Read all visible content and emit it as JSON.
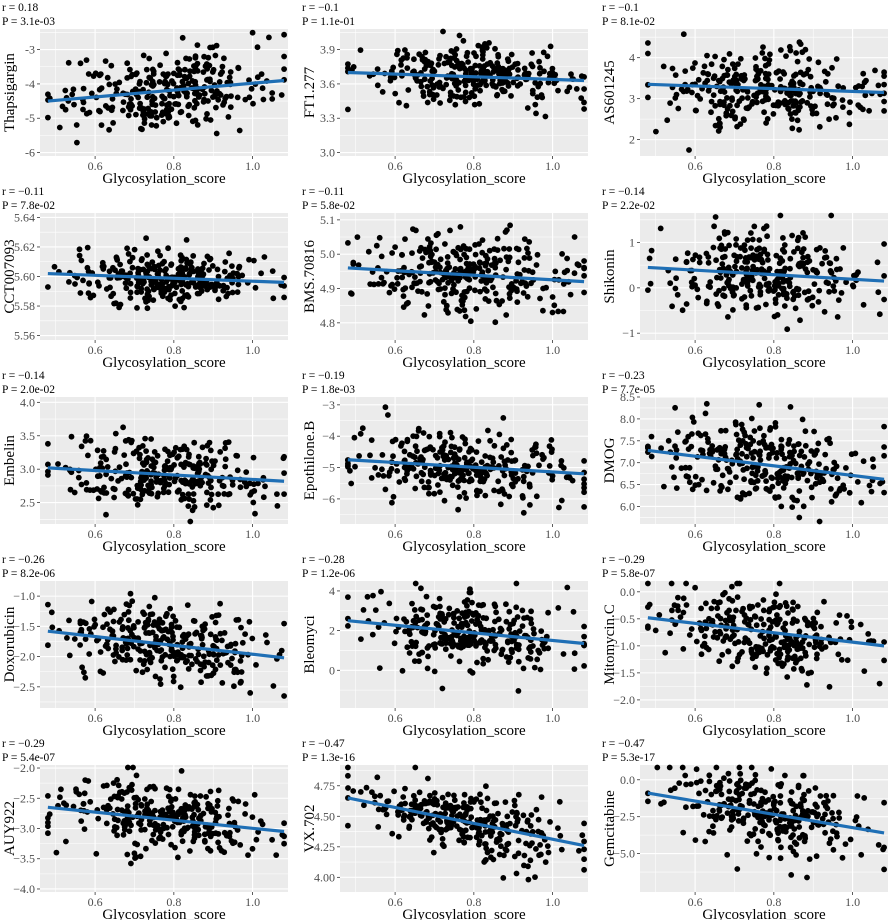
{
  "colors": {
    "panel_background": "#ebebeb",
    "grid": "#ffffff",
    "points": "#000000",
    "fit_line": "#1f6fb5"
  },
  "chart_data": [
    {
      "type": "scatter",
      "xlabel": "Glycosylation_score",
      "ylabel": "Thapsigargin",
      "r_text": "r = 0.18",
      "p_text": "P = 3.1e-03",
      "xlim": [
        0.46,
        1.09
      ],
      "ylim": [
        -6.1,
        -2.4
      ],
      "xticks": [
        "0.6",
        "0.8",
        "1.0"
      ],
      "yticks": [
        "-3",
        "-4",
        "-5",
        "-6"
      ],
      "trend": {
        "x": [
          0.48,
          1.08
        ],
        "y": [
          -4.5,
          -3.9
        ]
      },
      "n": 300,
      "y_center": -4.2,
      "y_sd": 0.55,
      "cloud_note": "~300 points"
    },
    {
      "type": "scatter",
      "xlabel": "Glycosylation_score",
      "ylabel": "FT1.277",
      "r_text": "r = −0.1",
      "p_text": "P = 1.1e-01",
      "xlim": [
        0.46,
        1.09
      ],
      "ylim": [
        2.97,
        4.08
      ],
      "xticks": [
        "0.6",
        "0.8",
        "1.0"
      ],
      "yticks": [
        "3.9",
        "3.6",
        "3.3",
        "3.0"
      ],
      "trend": {
        "x": [
          0.48,
          1.08
        ],
        "y": [
          3.7,
          3.63
        ]
      },
      "n": 300,
      "y_center": 3.67,
      "y_sd": 0.12
    },
    {
      "type": "scatter",
      "xlabel": "Glycosylation_score",
      "ylabel": "AS601245",
      "r_text": "r = −0.1",
      "p_text": "P = 8.1e-02",
      "xlim": [
        0.46,
        1.09
      ],
      "ylim": [
        1.6,
        4.7
      ],
      "xticks": [
        "0.6",
        "0.8",
        "1.0"
      ],
      "yticks": [
        "4",
        "3",
        "2"
      ],
      "trend": {
        "x": [
          0.48,
          1.08
        ],
        "y": [
          3.35,
          3.15
        ]
      },
      "n": 300,
      "y_center": 3.25,
      "y_sd": 0.45
    },
    {
      "type": "scatter",
      "xlabel": "Glycosylation_score",
      "ylabel": "CCT007093",
      "r_text": "r = −0.11",
      "p_text": "P = 7.8e-02",
      "xlim": [
        0.46,
        1.09
      ],
      "ylim": [
        5.557,
        5.643
      ],
      "xticks": [
        "0.6",
        "0.8",
        "1.0"
      ],
      "yticks": [
        "5.64",
        "5.62",
        "5.60",
        "5.58",
        "5.56"
      ],
      "trend": {
        "x": [
          0.48,
          1.08
        ],
        "y": [
          5.602,
          5.596
        ]
      },
      "n": 300,
      "y_center": 5.599,
      "y_sd": 0.009
    },
    {
      "type": "scatter",
      "xlabel": "Glycosylation_score",
      "ylabel": "BMS.70816",
      "r_text": "r = −0.11",
      "p_text": "P = 5.8e-02",
      "xlim": [
        0.46,
        1.09
      ],
      "ylim": [
        4.75,
        5.12
      ],
      "xticks": [
        "0.6",
        "0.8",
        "1.0"
      ],
      "yticks": [
        "5.1",
        "5.0",
        "4.9",
        "4.8"
      ],
      "trend": {
        "x": [
          0.48,
          1.08
        ],
        "y": [
          4.96,
          4.92
        ]
      },
      "n": 300,
      "y_center": 4.94,
      "y_sd": 0.06
    },
    {
      "type": "scatter",
      "xlabel": "Glycosylation_score",
      "ylabel": "Shikonin",
      "r_text": "r = −0.14",
      "p_text": "P = 2.2e-02",
      "xlim": [
        0.46,
        1.09
      ],
      "ylim": [
        -1.15,
        1.65
      ],
      "xticks": [
        "0.6",
        "0.8",
        "1.0"
      ],
      "yticks": [
        "1",
        "0",
        "−1"
      ],
      "trend": {
        "x": [
          0.48,
          1.08
        ],
        "y": [
          0.45,
          0.15
        ]
      },
      "n": 300,
      "y_center": 0.3,
      "y_sd": 0.45
    },
    {
      "type": "scatter",
      "xlabel": "Glycosylation_score",
      "ylabel": "Embelin",
      "r_text": "r = −0.14",
      "p_text": "P = 2.0e-02",
      "xlim": [
        0.46,
        1.09
      ],
      "ylim": [
        2.18,
        4.08
      ],
      "xticks": [
        "0.6",
        "0.8",
        "1.0"
      ],
      "yticks": [
        "4.0",
        "3.5",
        "3.0",
        "2.5"
      ],
      "trend": {
        "x": [
          0.48,
          1.08
        ],
        "y": [
          3.02,
          2.82
        ]
      },
      "n": 300,
      "y_center": 2.92,
      "y_sd": 0.28
    },
    {
      "type": "scatter",
      "xlabel": "Glycosylation_score",
      "ylabel": "Epothilone.B",
      "r_text": "r = −0.19",
      "p_text": "P = 1.8e-03",
      "xlim": [
        0.46,
        1.09
      ],
      "ylim": [
        -6.8,
        -2.75
      ],
      "xticks": [
        "0.6",
        "0.8",
        "1.0"
      ],
      "yticks": [
        "−3",
        "−4",
        "−5",
        "−6"
      ],
      "trend": {
        "x": [
          0.48,
          1.08
        ],
        "y": [
          -4.75,
          -5.2
        ]
      },
      "n": 300,
      "y_center": -4.95,
      "y_sd": 0.55
    },
    {
      "type": "scatter",
      "xlabel": "Glycosylation_score",
      "ylabel": "DMOG",
      "r_text": "r = −0.23",
      "p_text": "P = 7.7e-05",
      "xlim": [
        0.46,
        1.09
      ],
      "ylim": [
        5.6,
        8.5
      ],
      "xticks": [
        "0.6",
        "0.8",
        "1.0"
      ],
      "yticks": [
        "8.5",
        "8.0",
        "7.5",
        "7.0",
        "6.5",
        "6.0"
      ],
      "trend": {
        "x": [
          0.48,
          1.08
        ],
        "y": [
          7.28,
          6.62
        ]
      },
      "n": 300,
      "y_center": 6.95,
      "y_sd": 0.5
    },
    {
      "type": "scatter",
      "xlabel": "Glycosylation_score",
      "ylabel": "Doxorubicin",
      "r_text": "r = −0.26",
      "p_text": "P = 8.2e-06",
      "xlim": [
        0.46,
        1.09
      ],
      "ylim": [
        -2.85,
        -0.75
      ],
      "xticks": [
        "0.6",
        "0.8",
        "1.0"
      ],
      "yticks": [
        "−1.0",
        "−1.5",
        "−2.0",
        "−2.5"
      ],
      "trend": {
        "x": [
          0.48,
          1.08
        ],
        "y": [
          -1.58,
          -2.02
        ]
      },
      "n": 300,
      "y_center": -1.8,
      "y_sd": 0.3
    },
    {
      "type": "scatter",
      "xlabel": "Glycosylation_score",
      "ylabel": "Bleomyci",
      "r_text": "r = −0.28",
      "p_text": "P = 1.2e-06",
      "xlim": [
        0.46,
        1.09
      ],
      "ylim": [
        -1.9,
        4.5
      ],
      "xticks": [
        "0.6",
        "0.8",
        "1.0"
      ],
      "yticks": [
        "4",
        "2",
        "0"
      ],
      "trend": {
        "x": [
          0.48,
          1.08
        ],
        "y": [
          2.5,
          1.35
        ]
      },
      "n": 300,
      "y_center": 1.9,
      "y_sd": 0.9
    },
    {
      "type": "scatter",
      "xlabel": "Glycosylation_score",
      "ylabel": "Mitomycin.C",
      "r_text": "r = −0.29",
      "p_text": "P = 5.8e-07",
      "xlim": [
        0.46,
        1.09
      ],
      "ylim": [
        -2.15,
        0.2
      ],
      "xticks": [
        "0.6",
        "0.8",
        "1.0"
      ],
      "yticks": [
        "0.0",
        "−0.5",
        "−1.0",
        "−1.5",
        "−2.0"
      ],
      "trend": {
        "x": [
          0.48,
          1.08
        ],
        "y": [
          -0.48,
          -1.0
        ]
      },
      "n": 300,
      "y_center": -0.75,
      "y_sd": 0.38
    },
    {
      "type": "scatter",
      "xlabel": "Glycosylation_score",
      "ylabel": "AUY922",
      "r_text": "r = −0.29",
      "p_text": "P = 5.4e-07",
      "xlim": [
        0.46,
        1.09
      ],
      "ylim": [
        -4.05,
        -1.95
      ],
      "xticks": [
        "0.6",
        "0.8",
        "1.0"
      ],
      "yticks": [
        "−2.0",
        "−2.5",
        "−3.0",
        "−3.5",
        "−4.0"
      ],
      "trend": {
        "x": [
          0.48,
          1.08
        ],
        "y": [
          -2.65,
          -3.05
        ]
      },
      "n": 300,
      "y_center": -2.85,
      "y_sd": 0.28
    },
    {
      "type": "scatter",
      "xlabel": "Glycosylation_score",
      "ylabel": "VX.702",
      "r_text": "r = −0.47",
      "p_text": "P = 1.3e-16",
      "xlim": [
        0.46,
        1.09
      ],
      "ylim": [
        3.88,
        4.92
      ],
      "xticks": [
        "0.6",
        "0.8",
        "1.0"
      ],
      "yticks": [
        "4.75",
        "4.50",
        "4.25",
        "4.00"
      ],
      "trend": {
        "x": [
          0.48,
          1.08
        ],
        "y": [
          4.65,
          4.26
        ]
      },
      "n": 300,
      "y_center": 4.45,
      "y_sd": 0.14
    },
    {
      "type": "scatter",
      "xlabel": "Glycosylation_score",
      "ylabel": "Gemcitabine",
      "r_text": "r = −0.47",
      "p_text": "P = 5.3e-17",
      "xlim": [
        0.46,
        1.09
      ],
      "ylim": [
        -7.6,
        1.0
      ],
      "xticks": [
        "0.6",
        "0.8",
        "1.0"
      ],
      "yticks": [
        "0.0",
        "−2.5",
        "−5.0"
      ],
      "trend": {
        "x": [
          0.48,
          1.08
        ],
        "y": [
          -0.9,
          -3.6
        ]
      },
      "n": 300,
      "y_center": -2.2,
      "y_sd": 1.3
    }
  ]
}
